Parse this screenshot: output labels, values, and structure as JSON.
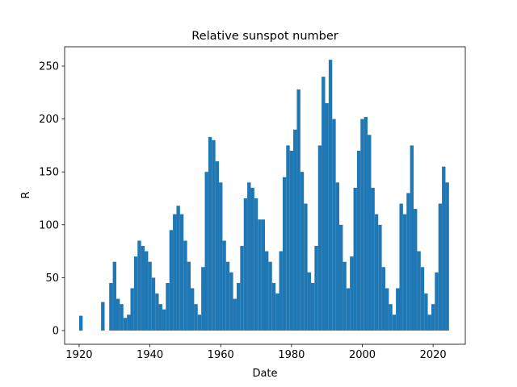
{
  "chart_data": {
    "type": "bar",
    "title": "Relative sunspot number",
    "x_label": "Date",
    "y_label": "R",
    "color": "#1f77b4",
    "x": [
      1920.5,
      1926.7,
      1929,
      1930,
      1931,
      1932,
      1933,
      1934,
      1935,
      1936,
      1937,
      1938,
      1939,
      1940,
      1941,
      1942,
      1943,
      1944,
      1945,
      1946,
      1947,
      1948,
      1949,
      1950,
      1951,
      1952,
      1953,
      1954,
      1955,
      1956,
      1957,
      1958,
      1959,
      1960,
      1961,
      1962,
      1963,
      1964,
      1965,
      1966,
      1967,
      1968,
      1969,
      1970,
      1971,
      1972,
      1973,
      1974,
      1975,
      1976,
      1977,
      1978,
      1979,
      1980,
      1981,
      1982,
      1983,
      1984,
      1985,
      1986,
      1987,
      1988,
      1989,
      1990,
      1991,
      1992,
      1993,
      1994,
      1995,
      1996,
      1997,
      1998,
      1999,
      2000,
      2001,
      2002,
      2003,
      2004,
      2005,
      2006,
      2007,
      2008,
      2009,
      2010,
      2011,
      2012,
      2013,
      2014,
      2015,
      2016,
      2017,
      2018,
      2019,
      2020,
      2021,
      2022,
      2023,
      2024
    ],
    "values": [
      14,
      27,
      45,
      65,
      30,
      25,
      12,
      15,
      40,
      70,
      85,
      80,
      75,
      65,
      50,
      35,
      25,
      20,
      45,
      95,
      110,
      118,
      110,
      85,
      65,
      40,
      25,
      15,
      60,
      150,
      183,
      180,
      160,
      140,
      85,
      65,
      55,
      30,
      45,
      80,
      125,
      140,
      135,
      125,
      105,
      105,
      75,
      65,
      45,
      35,
      75,
      145,
      175,
      170,
      190,
      228,
      150,
      120,
      55,
      45,
      80,
      175,
      240,
      215,
      256,
      200,
      140,
      100,
      65,
      40,
      70,
      135,
      170,
      200,
      202,
      185,
      135,
      110,
      100,
      60,
      40,
      25,
      15,
      40,
      120,
      110,
      130,
      175,
      115,
      75,
      60,
      35,
      15,
      25,
      55,
      120,
      155,
      140
    ],
    "xlim": [
      1915.9,
      2029.1
    ],
    "ylim": [
      -12.96,
      268.3
    ],
    "xticks": [
      1920,
      1940,
      1960,
      1980,
      2000,
      2020
    ],
    "yticks": [
      0,
      50,
      100,
      150,
      200,
      250
    ]
  }
}
